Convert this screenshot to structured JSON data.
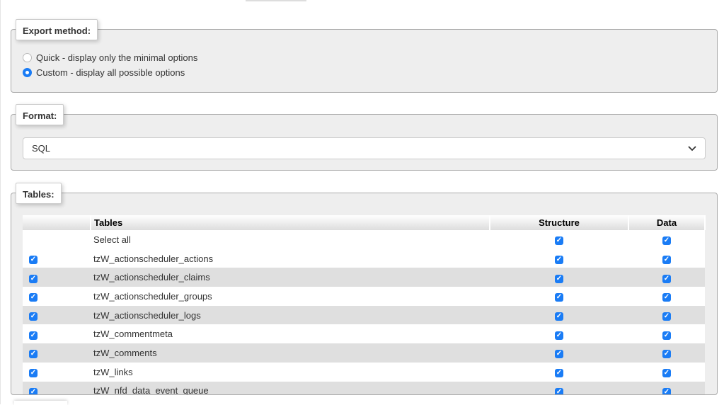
{
  "export_method": {
    "legend": "Export method:",
    "options": [
      {
        "label": "Quick - display only the minimal options",
        "selected": false
      },
      {
        "label": "Custom - display all possible options",
        "selected": true
      }
    ]
  },
  "format": {
    "legend": "Format:",
    "value": "SQL",
    "icon": "chevron-down-icon"
  },
  "tables": {
    "legend": "Tables:",
    "headers": [
      "",
      "Tables",
      "Structure",
      "Data"
    ],
    "select_all": "Select all",
    "rows": [
      {
        "name": "tzW_actionscheduler_actions",
        "selected": true,
        "structure": true,
        "data": true
      },
      {
        "name": "tzW_actionscheduler_claims",
        "selected": true,
        "structure": true,
        "data": true
      },
      {
        "name": "tzW_actionscheduler_groups",
        "selected": true,
        "structure": true,
        "data": true
      },
      {
        "name": "tzW_actionscheduler_logs",
        "selected": true,
        "structure": true,
        "data": true
      },
      {
        "name": "tzW_commentmeta",
        "selected": true,
        "structure": true,
        "data": true
      },
      {
        "name": "tzW_comments",
        "selected": true,
        "structure": true,
        "data": true
      },
      {
        "name": "tzW_links",
        "selected": true,
        "structure": true,
        "data": true
      },
      {
        "name": "tzW_nfd_data_event_queue",
        "selected": true,
        "structure": true,
        "data": true
      }
    ]
  },
  "colors": {
    "accent": "#1a7cf5",
    "fieldset_bg": "#eeeeee",
    "row_alt": "#dfdfdf"
  }
}
